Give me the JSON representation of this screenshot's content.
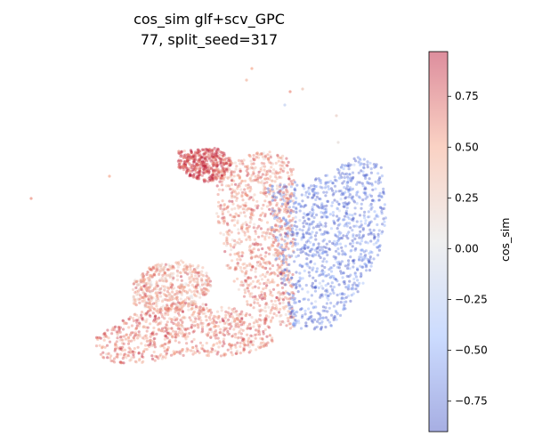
{
  "chart_data": {
    "type": "scatter",
    "title_line1": "cos_sim glf+scv_GPC",
    "title_line2": "77, split_seed=317",
    "axes_visible": false,
    "colormap": "coolwarm",
    "point_alpha": 0.4,
    "colorbar": {
      "label": "cos_sim",
      "range": [
        -0.9,
        0.97
      ],
      "ticks": [
        0.75,
        0.5,
        0.25,
        0.0,
        -0.25,
        -0.5,
        -0.75
      ],
      "tick_labels": [
        "0.75",
        "0.50",
        "0.25",
        "0.00",
        "−0.25",
        "−0.50",
        "−0.75"
      ],
      "low_color": "#3b4cc0",
      "mid_color": "#dddddd",
      "high_color": "#b40426"
    },
    "clusters": [
      {
        "region": "upper-left lobe",
        "value_mean": 0.8
      },
      {
        "region": "central column",
        "value_mean": 0.55
      },
      {
        "region": "right lobe",
        "value_mean": -0.7
      },
      {
        "region": "lower-left arm",
        "value_mean": 0.6
      },
      {
        "region": "lower-left lobe",
        "value_mean": 0.45
      }
    ]
  }
}
